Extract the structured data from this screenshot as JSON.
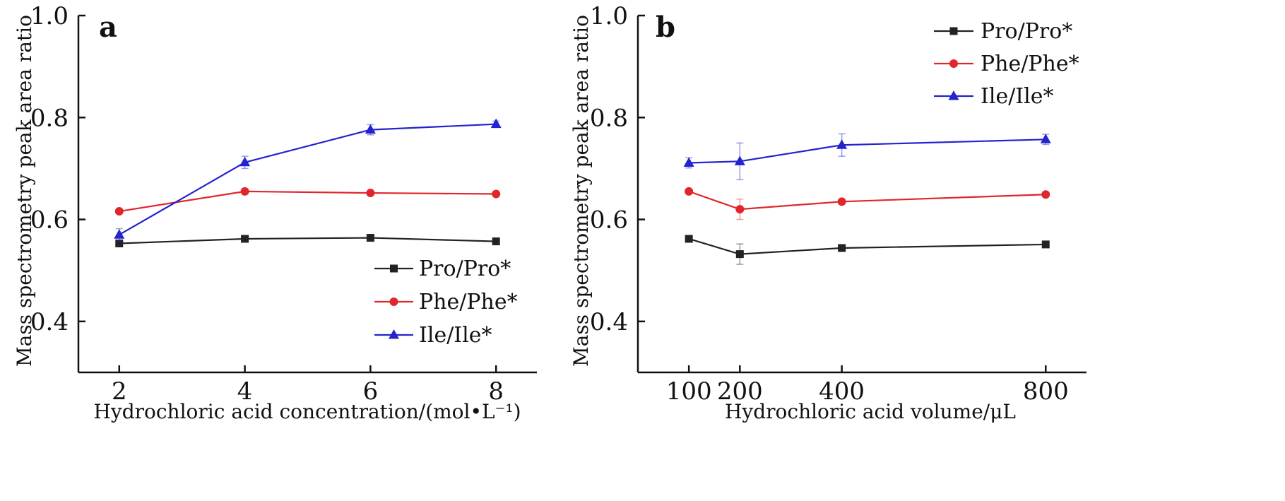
{
  "chart_data": [
    {
      "type": "line",
      "panel_label": "a",
      "xlabel": "Hydrochloric acid concentration/(mol•L⁻¹)",
      "ylabel": "Mass spectrometry peak area ratio",
      "x": [
        2,
        4,
        6,
        8
      ],
      "xticks": [
        "2",
        "4",
        "6",
        "8"
      ],
      "xlim": [
        1.35,
        8.65
      ],
      "ylim": [
        0.3,
        1.0
      ],
      "yticks": [
        "0.4",
        "0.6",
        "0.8",
        "1.0"
      ],
      "legend_position": "bottom-right",
      "grid": false,
      "series": [
        {
          "name": "Pro/Pro*",
          "color": "#222222",
          "marker": "square",
          "values": [
            0.553,
            0.562,
            0.564,
            0.557
          ],
          "errors": [
            0.006,
            0.005,
            0.004,
            0.004
          ]
        },
        {
          "name": "Phe/Phe*",
          "color": "#e0262a",
          "marker": "circle",
          "values": [
            0.616,
            0.655,
            0.652,
            0.65
          ],
          "errors": [
            0.004,
            0.004,
            0.003,
            0.003
          ]
        },
        {
          "name": "Ile/Ile*",
          "color": "#2323d0",
          "marker": "triangle",
          "values": [
            0.57,
            0.712,
            0.776,
            0.787
          ],
          "errors": [
            0.012,
            0.012,
            0.01,
            0.006
          ]
        }
      ]
    },
    {
      "type": "line",
      "panel_label": "b",
      "xlabel": "Hydrochloric acid volume/μL",
      "ylabel": "Mass spectrometry peak area ratio",
      "x": [
        100,
        200,
        400,
        800
      ],
      "xticks": [
        "100",
        "200",
        "400",
        "800"
      ],
      "xlim": [
        0,
        880
      ],
      "ylim": [
        0.3,
        1.0
      ],
      "yticks": [
        "0.4",
        "0.6",
        "0.8",
        "1.0"
      ],
      "legend_position": "top-right",
      "grid": false,
      "series": [
        {
          "name": "Pro/Pro*",
          "color": "#222222",
          "marker": "square",
          "values": [
            0.562,
            0.532,
            0.544,
            0.551
          ],
          "errors": [
            0.004,
            0.02,
            0.004,
            0.004
          ]
        },
        {
          "name": "Phe/Phe*",
          "color": "#e0262a",
          "marker": "circle",
          "values": [
            0.655,
            0.62,
            0.635,
            0.649
          ],
          "errors": [
            0.003,
            0.02,
            0.004,
            0.003
          ]
        },
        {
          "name": "Ile/Ile*",
          "color": "#2323d0",
          "marker": "triangle",
          "values": [
            0.711,
            0.714,
            0.746,
            0.757
          ],
          "errors": [
            0.01,
            0.036,
            0.022,
            0.01
          ]
        }
      ]
    }
  ]
}
